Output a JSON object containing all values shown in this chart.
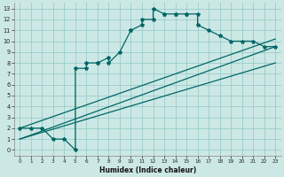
{
  "title": "",
  "xlabel": "Humidex (Indice chaleur)",
  "bg_color": "#cce8e4",
  "grid_color": "#99cccc",
  "line_color": "#006666",
  "xlim": [
    -0.5,
    23.5
  ],
  "ylim": [
    -0.5,
    13.5
  ],
  "xticks": [
    0,
    1,
    2,
    3,
    4,
    5,
    6,
    7,
    8,
    9,
    10,
    11,
    12,
    13,
    14,
    15,
    16,
    17,
    18,
    19,
    20,
    21,
    22,
    23
  ],
  "yticks": [
    0,
    1,
    2,
    3,
    4,
    5,
    6,
    7,
    8,
    9,
    10,
    11,
    12,
    13
  ],
  "main_x": [
    0,
    1,
    2,
    3,
    4,
    5,
    5,
    6,
    6,
    7,
    7,
    8,
    8,
    9,
    10,
    10,
    11,
    11,
    12,
    12,
    13,
    13,
    14,
    14,
    15,
    15,
    16,
    16,
    17,
    18,
    19,
    20,
    21,
    22,
    23
  ],
  "main_y": [
    2,
    2,
    2,
    1,
    1,
    0,
    7.5,
    7.5,
    8,
    8,
    8,
    8.5,
    8,
    9,
    11,
    11,
    11.5,
    12,
    12,
    13,
    12.5,
    12.5,
    12.5,
    12.5,
    12.5,
    12.5,
    12.5,
    11.5,
    11,
    10.5,
    10,
    10,
    10,
    9.5,
    9.5
  ],
  "line1_x": [
    0,
    23
  ],
  "line1_y": [
    1,
    9.5
  ],
  "line2_x": [
    0,
    23
  ],
  "line2_y": [
    1,
    8.0
  ],
  "line3_x": [
    0,
    23
  ],
  "line3_y": [
    2,
    10.2
  ]
}
